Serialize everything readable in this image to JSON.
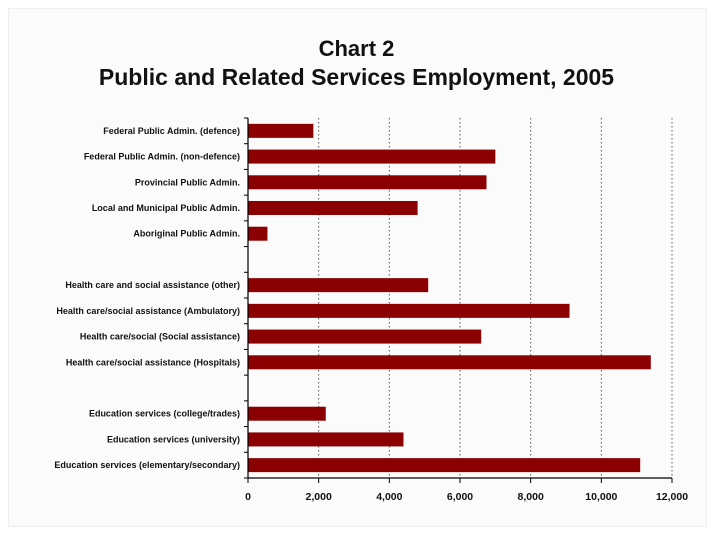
{
  "chart_data": {
    "type": "bar",
    "orientation": "horizontal",
    "title_line1": "Chart 2",
    "title_line2": "Public and Related Services Employment, 2005",
    "xlim": [
      0,
      12000
    ],
    "x_ticks": [
      "0",
      "2,000",
      "4,000",
      "6,000",
      "8,000",
      "10,000",
      "12,000"
    ],
    "x_tick_values": [
      0,
      2000,
      4000,
      6000,
      8000,
      10000,
      12000
    ],
    "grid": "vertical dotted",
    "bar_color": "#8b0000",
    "categories": [
      "Federal Public Admin. (defence)",
      "Federal Public Admin. (non-defence)",
      "Provincial Public Admin.",
      "Local and Municipal Public Admin.",
      "Aboriginal Public Admin.",
      "",
      "Health care and social assistance (other)",
      "Health care/social assistance (Ambulatory)",
      "Health care/social  (Social assistance)",
      "Health care/social assistance (Hospitals)",
      "",
      "Education services (college/trades)",
      "Education services (university)",
      "Education services (elementary/secondary)"
    ],
    "values": [
      1850,
      7000,
      6750,
      4800,
      550,
      null,
      5100,
      9100,
      6600,
      11400,
      null,
      2200,
      4400,
      11100
    ]
  }
}
